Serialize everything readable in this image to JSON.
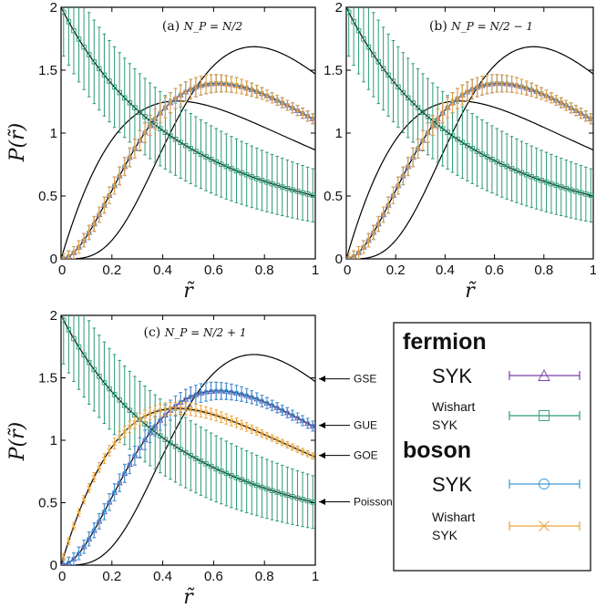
{
  "colors": {
    "fermion_syk": "#7b3fa8",
    "fermion_wishart_syk": "#2e9a78",
    "boson_syk": "#3f9ad6",
    "boson_wishart_syk": "#e8a33a",
    "reference_curve": "#000000"
  },
  "chart_data": [
    {
      "type": "line",
      "panel_label": "(a)",
      "title_prefix": "(a) ",
      "title_math": "N_P = N/2",
      "xlabel": "r̃",
      "ylabel": "P(r̃)",
      "xlim": [
        0,
        1
      ],
      "ylim": [
        0,
        2
      ],
      "xticks": [
        "0",
        "0.2",
        "0.4",
        "0.6",
        "0.8",
        "1"
      ],
      "yticks": [
        "0",
        "0.5",
        "1",
        "1.5",
        "2"
      ],
      "reference_curves": [
        "Poisson",
        "GOE",
        "GUE",
        "GSE"
      ],
      "series": [
        {
          "name": "fermion Wishart SYK",
          "marker": "square",
          "color_key": "fermion_wishart_syk",
          "follows": "Poisson",
          "error": 0.35
        },
        {
          "name": "fermion SYK",
          "marker": "triangle",
          "color_key": "fermion_syk",
          "follows": "GUE",
          "error": 0.08
        },
        {
          "name": "boson SYK",
          "marker": "circle",
          "color_key": "boson_syk",
          "follows": "GUE",
          "error": 0.08
        },
        {
          "name": "boson Wishart SYK",
          "marker": "x",
          "color_key": "boson_wishart_syk",
          "follows": "GUE",
          "error": 0.08
        }
      ]
    },
    {
      "type": "line",
      "panel_label": "(b)",
      "title_prefix": "(b) ",
      "title_math": "N_P = N/2 − 1",
      "xlabel": "r̃",
      "ylabel": "",
      "xlim": [
        0,
        1
      ],
      "ylim": [
        0,
        2
      ],
      "xticks": [
        "0",
        "0.2",
        "0.4",
        "0.6",
        "0.8",
        "1"
      ],
      "yticks": [
        "0",
        "0.5",
        "1",
        "1.5",
        "2"
      ],
      "reference_curves": [
        "Poisson",
        "GOE",
        "GUE",
        "GSE"
      ],
      "series": [
        {
          "name": "fermion Wishart SYK",
          "marker": "square",
          "color_key": "fermion_wishart_syk",
          "follows": "Poisson",
          "error": 0.35
        },
        {
          "name": "fermion SYK",
          "marker": "triangle",
          "color_key": "fermion_syk",
          "follows": "GUE",
          "error": 0.08
        },
        {
          "name": "boson SYK",
          "marker": "circle",
          "color_key": "boson_syk",
          "follows": "GUE",
          "error": 0.08
        },
        {
          "name": "boson Wishart SYK",
          "marker": "x",
          "color_key": "boson_wishart_syk",
          "follows": "GUE",
          "error": 0.08
        }
      ]
    },
    {
      "type": "line",
      "panel_label": "(c)",
      "title_prefix": "(c) ",
      "title_math": "N_P = N/2 + 1",
      "xlabel": "r̃",
      "ylabel": "P(r̃)",
      "xlim": [
        0,
        1
      ],
      "ylim": [
        0,
        2
      ],
      "xticks": [
        "0",
        "0.2",
        "0.4",
        "0.6",
        "0.8",
        "1"
      ],
      "yticks": [
        "0",
        "0.5",
        "1",
        "1.5",
        "2"
      ],
      "reference_curves": [
        "Poisson",
        "GOE",
        "GUE",
        "GSE"
      ],
      "curve_labels": [
        "GSE",
        "GUE",
        "GOE",
        "Poisson"
      ],
      "series": [
        {
          "name": "fermion Wishart SYK",
          "marker": "square",
          "color_key": "fermion_wishart_syk",
          "follows": "Poisson",
          "error": 0.35
        },
        {
          "name": "fermion SYK",
          "marker": "triangle",
          "color_key": "fermion_syk",
          "follows": "GUE",
          "error": 0.08
        },
        {
          "name": "boson SYK",
          "marker": "circle",
          "color_key": "boson_syk",
          "follows": "GUE",
          "error": 0.08
        },
        {
          "name": "boson Wishart SYK",
          "marker": "x",
          "color_key": "boson_wishart_syk",
          "follows": "GOE",
          "error": 0.05
        }
      ]
    }
  ],
  "legend": {
    "fermion_heading": "fermion",
    "boson_heading": "boson",
    "entries": [
      {
        "lines": [
          "SYK"
        ],
        "style": "big",
        "marker": "triangle",
        "color_key": "fermion_syk"
      },
      {
        "lines": [
          "Wishart",
          "SYK"
        ],
        "style": "small",
        "marker": "square",
        "color_key": "fermion_wishart_syk"
      },
      {
        "lines": [
          "SYK"
        ],
        "style": "big",
        "marker": "circle",
        "color_key": "boson_syk"
      },
      {
        "lines": [
          "Wishart",
          "SYK"
        ],
        "style": "small",
        "marker": "x",
        "color_key": "boson_wishart_syk"
      }
    ]
  }
}
